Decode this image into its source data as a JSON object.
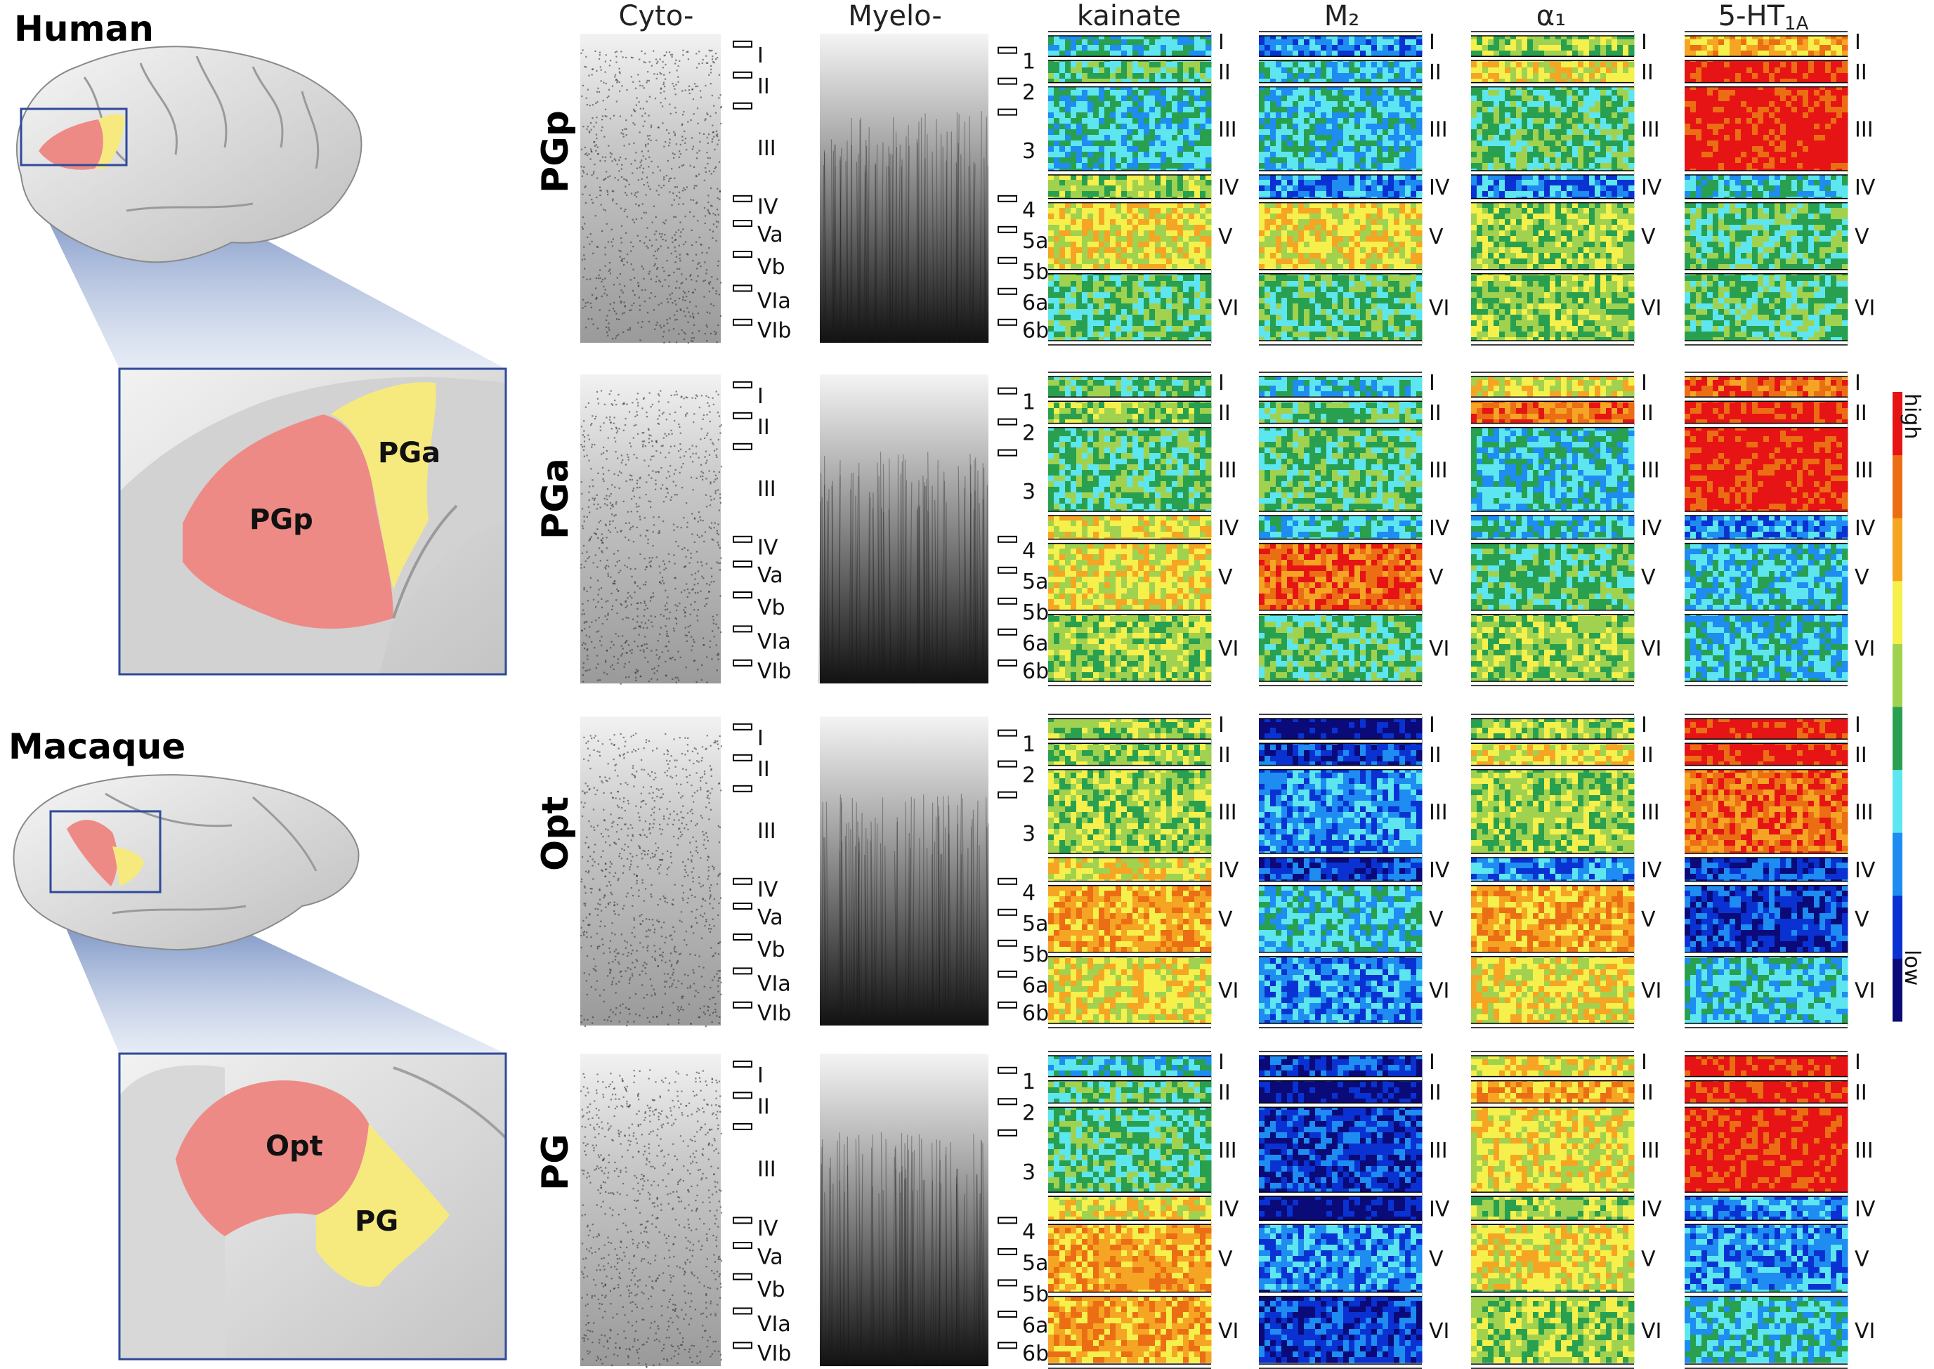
{
  "species": {
    "human": "Human",
    "macaque": "Macaque"
  },
  "human_areas": {
    "posterior": "PGp",
    "anterior": "PGa"
  },
  "macaque_areas": {
    "dorsal": "Opt",
    "ventral": "PG"
  },
  "columns": {
    "cyto": "Cyto-",
    "myelo": "Myelo-",
    "kainate": "kainate",
    "m2": "M₂",
    "alpha1": "α₁",
    "ht1a_main": "5-HT",
    "ht1a_sub": "1A"
  },
  "rows": [
    {
      "label": "PGp"
    },
    {
      "label": "PGa"
    },
    {
      "label": "Opt"
    },
    {
      "label": "PG"
    }
  ],
  "cyto_layers": [
    "I",
    "II",
    "III",
    "IV",
    "Va",
    "Vb",
    "VIa",
    "VIb"
  ],
  "myelo_layers": [
    "1",
    "2",
    "3",
    "4",
    "5a",
    "5b",
    "6a",
    "6b"
  ],
  "receptor_layers": [
    "I",
    "II",
    "III",
    "IV",
    "V",
    "VI"
  ],
  "legend": {
    "high": "high",
    "low": "low"
  },
  "colors": {
    "highlight_posterior": "#ee8a86",
    "highlight_anterior": "#f6ea7e",
    "frame_blue": "#2e4a9a",
    "colormap": [
      "#0a0a78",
      "#0a32d2",
      "#1e8cf0",
      "#5ee6f0",
      "#28a050",
      "#a0d250",
      "#f5f04b",
      "#f5a523",
      "#eb6e14",
      "#e61414"
    ]
  }
}
